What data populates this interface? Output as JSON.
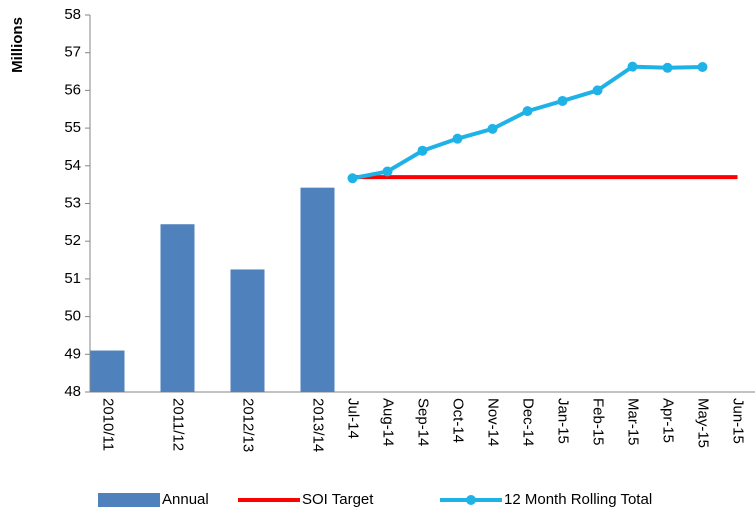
{
  "chart_data": {
    "type": "bar",
    "y_label": "Millions",
    "categories": [
      "2010/11",
      null,
      "2011/12",
      null,
      "2012/13",
      null,
      "2013/14",
      "Jul-14",
      "Aug-14",
      "Sep-14",
      "Oct-14",
      "Nov-14",
      "Dec-14",
      "Jan-15",
      "Feb-15",
      "Mar-15",
      "Apr-15",
      "May-15",
      "Jun-15"
    ],
    "series": [
      {
        "name": "Annual",
        "type": "bar",
        "color": "#4f81bd",
        "values": [
          49.1,
          null,
          52.45,
          null,
          51.25,
          null,
          53.42,
          null,
          null,
          null,
          null,
          null,
          null,
          null,
          null,
          null,
          null,
          null,
          null
        ]
      },
      {
        "name": "SOI Target",
        "type": "line",
        "color": "#ff0000",
        "values": [
          null,
          null,
          null,
          null,
          null,
          null,
          null,
          53.7,
          53.7,
          53.7,
          53.7,
          53.7,
          53.7,
          53.7,
          53.7,
          53.7,
          53.7,
          53.7,
          53.7
        ]
      },
      {
        "name": "12 Month Rolling Total",
        "type": "line",
        "marker": "circle",
        "color": "#1fb2e6",
        "values": [
          null,
          null,
          null,
          null,
          null,
          null,
          null,
          53.67,
          53.85,
          54.4,
          54.72,
          54.98,
          55.45,
          55.72,
          56.0,
          56.63,
          56.6,
          56.62,
          null
        ]
      }
    ],
    "ylim": [
      48,
      58
    ],
    "yticks": [
      48,
      49,
      50,
      51,
      52,
      53,
      54,
      55,
      56,
      57,
      58
    ],
    "legend": "bottom"
  }
}
